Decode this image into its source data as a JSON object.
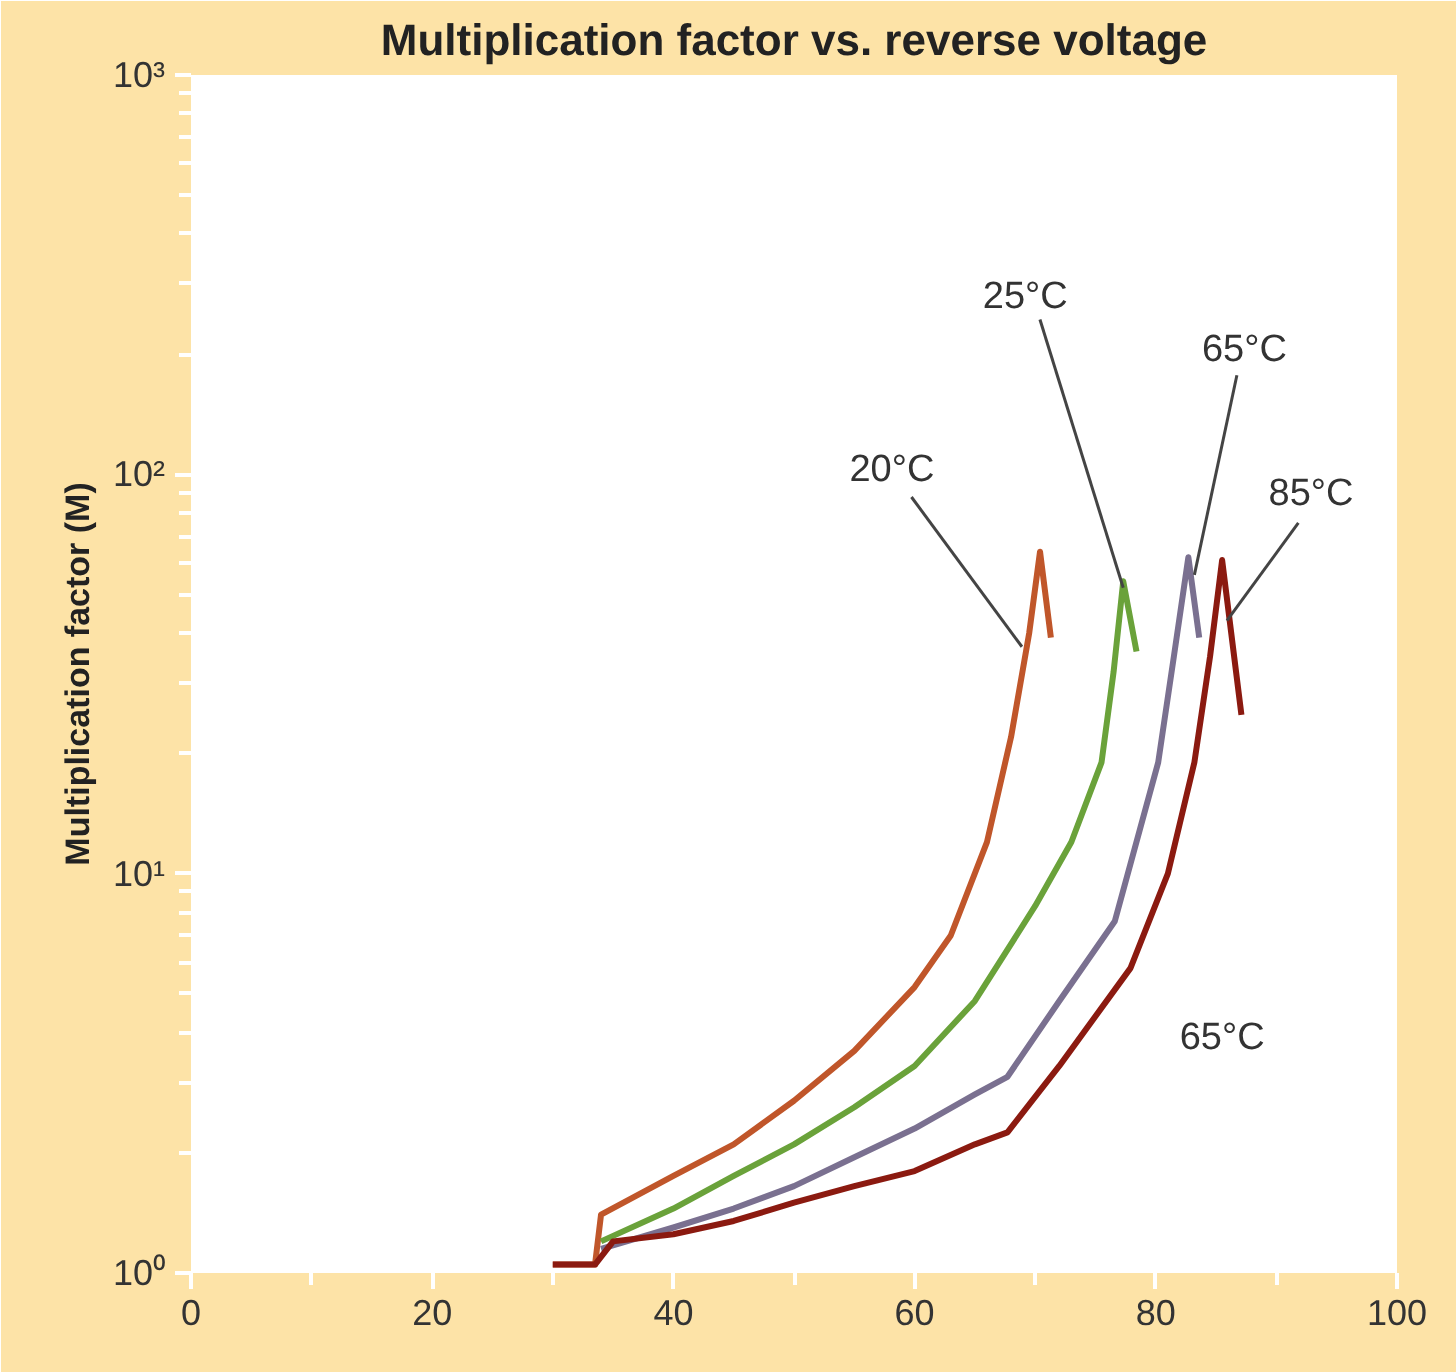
{
  "chart_data": {
    "type": "line",
    "title": "Multiplication factor vs. reverse voltage",
    "ylabel": "Multiplication factor (M)",
    "log": "y",
    "grid": false,
    "marker": "none",
    "line_style": "solid",
    "xlim": [
      0,
      100
    ],
    "xticks": [
      0,
      20,
      40,
      60,
      80,
      100
    ],
    "ylim": [
      1,
      1000
    ],
    "yticks": [
      {
        "value": 1,
        "label": "10⁰"
      },
      {
        "value": 10,
        "label": "10¹"
      },
      {
        "value": 100,
        "label": "10²"
      },
      {
        "value": 1000,
        "label": "10³"
      }
    ],
    "series": [
      {
        "color": "#c0562a",
        "x": [
          30,
          33.5,
          34,
          40,
          45,
          50,
          55,
          60,
          63,
          66,
          68,
          69.5,
          70.4,
          71.3
        ],
        "values": [
          1.05,
          1.05,
          1.4,
          1.75,
          2.1,
          2.7,
          3.6,
          5.2,
          7,
          12,
          22,
          40,
          64,
          39
        ]
      },
      {
        "color": "#6aa23a",
        "x": [
          34,
          40,
          45,
          50,
          55,
          60,
          65,
          70,
          73,
          75.5,
          76.5,
          77.3,
          78.4
        ],
        "values": [
          1.2,
          1.45,
          1.75,
          2.1,
          2.6,
          3.3,
          4.8,
          8.3,
          12,
          19,
          32,
          54,
          36
        ]
      },
      {
        "color": "#7a7090",
        "x": [
          34,
          40,
          45,
          50,
          55,
          60,
          65,
          67.7,
          72,
          76.6,
          80.2,
          81.5,
          82.7,
          83.6
        ],
        "values": [
          1.15,
          1.3,
          1.45,
          1.65,
          1.95,
          2.3,
          2.8,
          3.1,
          4.8,
          7.6,
          19,
          35,
          62,
          39
        ]
      },
      {
        "color": "#8b1a10",
        "x": [
          30,
          33.5,
          35,
          40,
          45,
          50,
          55,
          60,
          65,
          67.7,
          72,
          77.9,
          81,
          83.2,
          84.5,
          85.5,
          87.1
        ],
        "values": [
          1.05,
          1.05,
          1.2,
          1.25,
          1.35,
          1.5,
          1.65,
          1.8,
          2.1,
          2.25,
          3.3,
          5.8,
          10,
          19,
          35,
          61,
          25
        ]
      }
    ],
    "annotations": [
      {
        "text": "20°C",
        "x": 68.9,
        "y": 37
      },
      {
        "text": "25°C",
        "x": 77.3,
        "y": 52
      },
      {
        "text": "65°C",
        "x": 83.2,
        "y": 56
      },
      {
        "text": "85°C",
        "x": 85.9,
        "y": 43
      },
      "65°C"
    ]
  }
}
